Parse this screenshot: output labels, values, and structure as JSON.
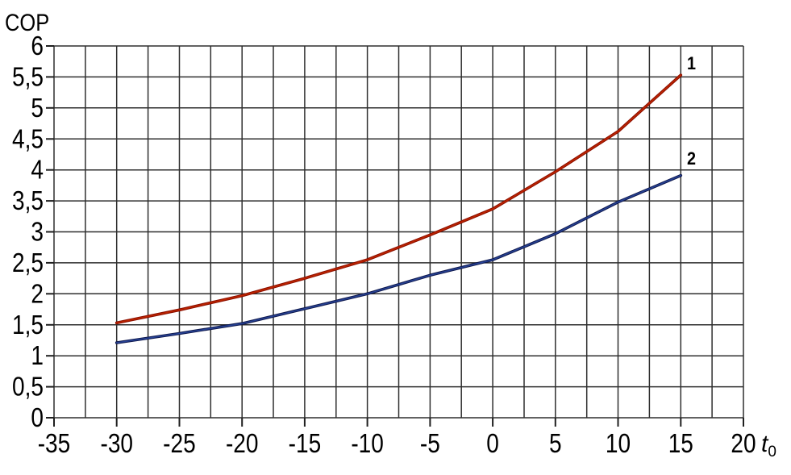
{
  "labels": {
    "cop": "COP",
    "x_unit": "t",
    "x_unit_sub": "0"
  },
  "colors": {
    "grid": "#2f2f2f",
    "tick": "#1f1f1f",
    "background": "#ffffff",
    "text": "#000000"
  },
  "chart_data": {
    "type": "line",
    "title": "COP",
    "xlabel": "t0",
    "ylabel": "COP",
    "xlim": [
      -35,
      20
    ],
    "ylim": [
      0,
      6
    ],
    "x_tick_step": 5,
    "y_tick_step": 0.5,
    "x_grid_step": 2.5,
    "y_grid_step": 0.5,
    "grid": true,
    "legend_position": "labels-at-line-ends",
    "x_tick_labels": [
      "-35",
      "-30",
      "-25",
      "-20",
      "-15",
      "-10",
      "-5",
      "0",
      "5",
      "10",
      "15",
      "20"
    ],
    "y_tick_labels": [
      "0",
      "0,5",
      "1",
      "1,5",
      "2",
      "2,5",
      "3",
      "3,5",
      "4",
      "4,5",
      "5",
      "5,5",
      "6"
    ],
    "series": [
      {
        "name": "1",
        "color": "#8c0f00",
        "core_color": "#c42800",
        "x": [
          -30,
          -25,
          -20,
          -15,
          -10,
          -5,
          0,
          5,
          10,
          15
        ],
        "values": [
          1.53,
          1.74,
          1.97,
          2.25,
          2.55,
          2.95,
          3.37,
          3.97,
          4.62,
          5.53
        ]
      },
      {
        "name": "2",
        "color": "#101a4e",
        "core_color": "#2a48a0",
        "x": [
          -30,
          -25,
          -20,
          -15,
          -10,
          -5,
          0,
          5,
          10,
          15
        ],
        "values": [
          1.21,
          1.36,
          1.52,
          1.76,
          2.0,
          2.3,
          2.55,
          2.97,
          3.48,
          3.91
        ]
      }
    ]
  }
}
